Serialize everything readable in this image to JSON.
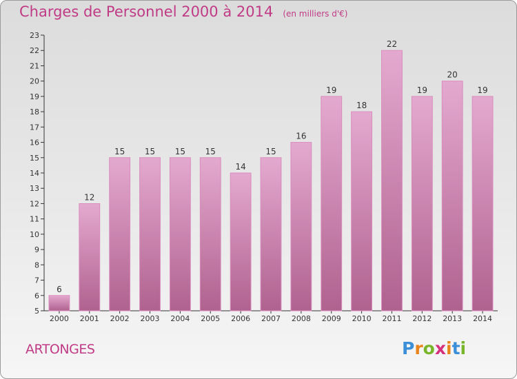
{
  "title": "Charges de Personnel 2000 à 2014",
  "subtitle": "(en milliers d'€)",
  "commune": "ARTONGES",
  "logo": {
    "text": "Proxiti",
    "letters": [
      "P",
      "r",
      "o",
      "x",
      "i",
      "t",
      "i"
    ],
    "colors": [
      "#3a8fd8",
      "#e8841a",
      "#79b52a",
      "#d62f7c",
      "#e8841a",
      "#3a8fd8",
      "#79b52a"
    ]
  },
  "colors": {
    "bar_top": "#e4a9cf",
    "bar_bottom": "#b0628f",
    "bar_stroke": "#d98cbd",
    "text": "#c03b86"
  },
  "chart_data": {
    "type": "bar",
    "title": "Charges de Personnel 2000 à 2014",
    "subtitle": "(en milliers d'€)",
    "categories": [
      "2000",
      "2001",
      "2002",
      "2003",
      "2004",
      "2005",
      "2006",
      "2007",
      "2008",
      "2009",
      "2010",
      "2011",
      "2012",
      "2013",
      "2014"
    ],
    "values": [
      6,
      12,
      15,
      15,
      15,
      15,
      14,
      15,
      16,
      19,
      18,
      22,
      19,
      20,
      19
    ],
    "ylim": [
      5,
      23
    ],
    "yticks": [
      5,
      6,
      7,
      8,
      9,
      10,
      11,
      12,
      13,
      14,
      15,
      16,
      17,
      18,
      19,
      20,
      21,
      22,
      23
    ],
    "grid": false,
    "legend": "none"
  }
}
